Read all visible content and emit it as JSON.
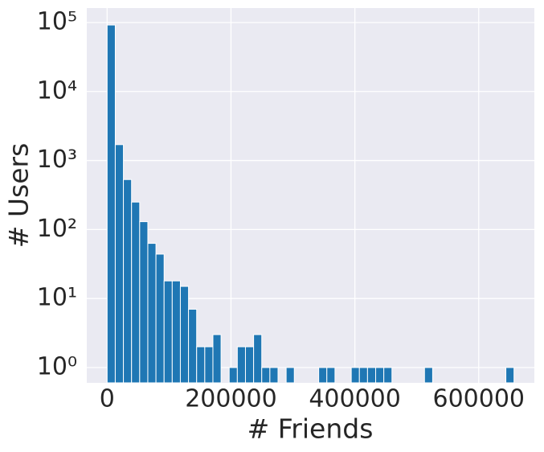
{
  "chart_data": {
    "type": "histogram",
    "xlabel": "# Friends",
    "ylabel": "# Users",
    "bins": [
      0,
      13140,
      26280,
      39420,
      52560,
      65700,
      78840,
      91980,
      105120,
      118260,
      131400,
      144540,
      157680,
      170820,
      183960,
      197100,
      210240,
      223380,
      236520,
      249660,
      262800,
      275940,
      289080,
      302220,
      315360,
      328500,
      341640,
      354780,
      367920,
      381060,
      394200,
      407340,
      420480,
      433620,
      446760,
      459900,
      473040,
      486180,
      499320,
      512460,
      525600,
      538740,
      551880,
      565020,
      578160,
      591300,
      604440,
      617580,
      630720,
      643860,
      657000
    ],
    "values": [
      92000,
      1700,
      530,
      250,
      130,
      63,
      44,
      18,
      18,
      15,
      7,
      2,
      2,
      3,
      0,
      1,
      2,
      2,
      3,
      1,
      1,
      0,
      1,
      0,
      0,
      0,
      1,
      1,
      0,
      0,
      1,
      1,
      1,
      1,
      1,
      0,
      0,
      0,
      0,
      1,
      0,
      0,
      0,
      0,
      0,
      0,
      0,
      0,
      0,
      1
    ],
    "color": "#1f77b4",
    "xlim": [
      -32850,
      689850
    ],
    "xticks": [
      0,
      200000,
      400000,
      600000
    ],
    "ylim": [
      0.6,
      162000
    ],
    "y_log_scale": true,
    "yticks": [
      {
        "value": 1,
        "label": "10⁰"
      },
      {
        "value": 10,
        "label": "10¹"
      },
      {
        "value": 100,
        "label": "10²"
      },
      {
        "value": 1000,
        "label": "10³"
      },
      {
        "value": 10000,
        "label": "10⁴"
      },
      {
        "value": 100000,
        "label": "10⁵"
      }
    ],
    "grid": true
  }
}
